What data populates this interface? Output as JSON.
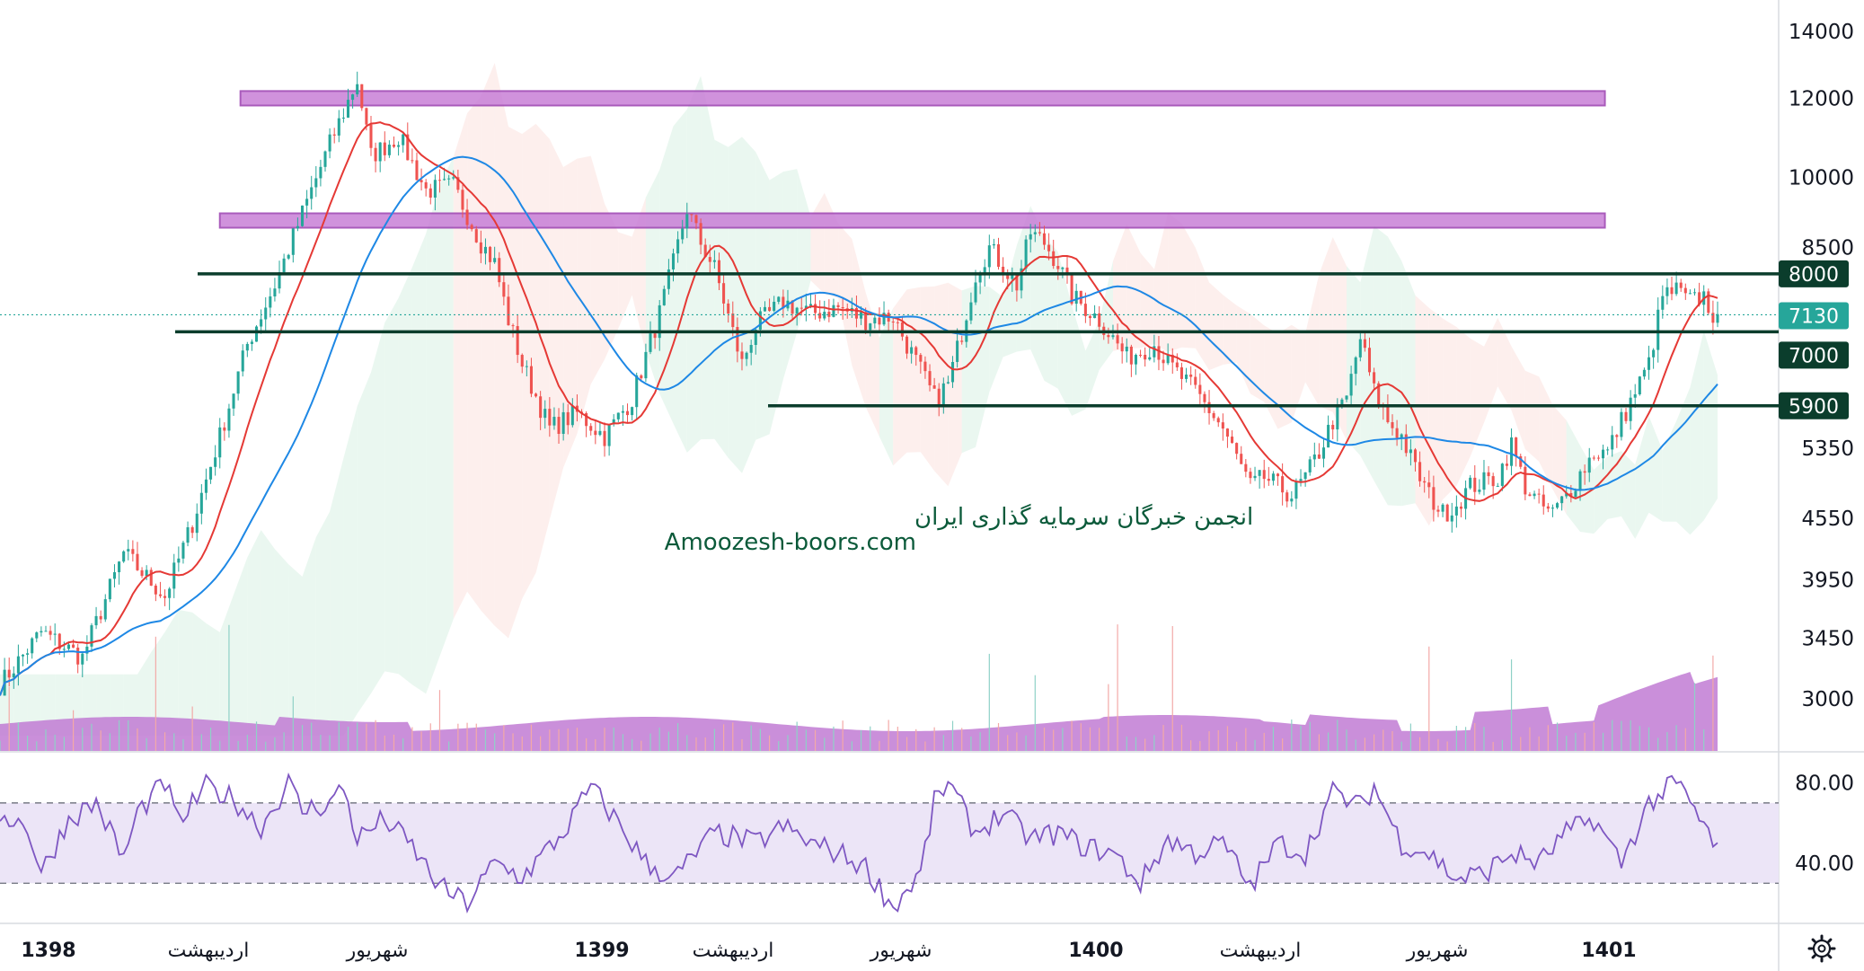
{
  "chart_data": [
    {
      "type": "candlestick",
      "x_tick_labels": [
        "1398",
        "اردیبهشت",
        "شهریور",
        "1399",
        "اردیبهشت",
        "شهریور",
        "1400",
        "اردیبهشت",
        "شهریور",
        "1401"
      ],
      "bold_ticks": [
        "1398",
        "1399",
        "1400",
        "1401"
      ],
      "y_scale": "log",
      "y_tick_labels": [
        "14000",
        "12000",
        "10000",
        "8500",
        "5350",
        "4550",
        "3950",
        "3450",
        "3000"
      ],
      "ylim": [
        2600,
        15500
      ],
      "close_points": [
        [
          0,
          3100
        ],
        [
          3,
          3500
        ],
        [
          6,
          3300
        ],
        [
          9,
          4200
        ],
        [
          12,
          3800
        ],
        [
          14,
          4500
        ],
        [
          16,
          5500
        ],
        [
          18,
          6800
        ],
        [
          20,
          7800
        ],
        [
          22,
          9200
        ],
        [
          24,
          10800
        ],
        [
          26,
          12500
        ],
        [
          27,
          10500
        ],
        [
          29,
          11000
        ],
        [
          31,
          9700
        ],
        [
          33,
          9800
        ],
        [
          35,
          8600
        ],
        [
          36,
          8200
        ],
        [
          37,
          7200
        ],
        [
          38,
          6500
        ],
        [
          40,
          5600
        ],
        [
          42,
          5800
        ],
        [
          44,
          5500
        ],
        [
          46,
          6000
        ],
        [
          48,
          7300
        ],
        [
          49,
          8200
        ],
        [
          50,
          9300
        ],
        [
          51,
          8600
        ],
        [
          52,
          8100
        ],
        [
          54,
          6500
        ],
        [
          55,
          7100
        ],
        [
          57,
          7500
        ],
        [
          59,
          7300
        ],
        [
          61,
          7400
        ],
        [
          63,
          7200
        ],
        [
          65,
          7250
        ],
        [
          66,
          6800
        ],
        [
          67,
          6400
        ],
        [
          68,
          6000
        ],
        [
          69,
          6200
        ],
        [
          70,
          7000
        ],
        [
          71,
          8000
        ],
        [
          72,
          8500
        ],
        [
          74,
          7800
        ],
        [
          75,
          8800
        ],
        [
          76,
          8600
        ],
        [
          77,
          8200
        ],
        [
          78,
          7600
        ],
        [
          80,
          7200
        ],
        [
          82,
          6600
        ],
        [
          84,
          6800
        ],
        [
          85,
          6500
        ],
        [
          87,
          6100
        ],
        [
          89,
          5600
        ],
        [
          91,
          4900
        ],
        [
          92,
          5000
        ],
        [
          94,
          4800
        ],
        [
          95,
          5000
        ],
        [
          96,
          5300
        ],
        [
          97,
          5700
        ],
        [
          98,
          6000
        ],
        [
          99,
          6900
        ],
        [
          100,
          6100
        ],
        [
          101,
          5700
        ],
        [
          102,
          5500
        ],
        [
          103,
          5100
        ],
        [
          104,
          4800
        ],
        [
          105,
          4600
        ],
        [
          106,
          4700
        ],
        [
          107,
          4900
        ],
        [
          109,
          5000
        ],
        [
          110,
          5400
        ],
        [
          111,
          4900
        ],
        [
          112,
          4700
        ],
        [
          113,
          4600
        ],
        [
          114,
          4800
        ],
        [
          116,
          5300
        ],
        [
          117,
          5300
        ],
        [
          118,
          5700
        ],
        [
          120,
          6500
        ],
        [
          121,
          7600
        ],
        [
          122,
          7700
        ],
        [
          123,
          7500
        ],
        [
          124,
          7600
        ],
        [
          125,
          7130
        ]
      ],
      "series": [
        {
          "name": "",
          "color": "#e53935"
        },
        {
          "name": "",
          "color": "#1e88e5"
        }
      ],
      "levels": [
        {
          "label": "8000",
          "value": 8000
        },
        {
          "label": "7000",
          "value": 7000
        },
        {
          "label": "5900",
          "value": 5900
        }
      ],
      "zones": [
        {
          "from": 11800,
          "to": 12200
        },
        {
          "from": 8900,
          "to": 9200
        }
      ],
      "last_price_label": "7130",
      "level_color": "#0b3d2c",
      "zone_color": "#c87fd7",
      "volume_color": "#c17bd3",
      "colors": {
        "up": "#26a69a",
        "down": "#ef5350"
      }
    },
    {
      "type": "line",
      "y_tick_labels": [
        "80.00",
        "40.00"
      ],
      "band": [
        30,
        70
      ],
      "ylim": [
        10,
        95
      ],
      "line_color": "#7e57c2",
      "band_fill": "#ece5f7",
      "points": [
        [
          0,
          65
        ],
        [
          2,
          58
        ],
        [
          3,
          35
        ],
        [
          5,
          62
        ],
        [
          7,
          70
        ],
        [
          9,
          42
        ],
        [
          10,
          65
        ],
        [
          12,
          80
        ],
        [
          13,
          60
        ],
        [
          15,
          78
        ],
        [
          17,
          72
        ],
        [
          19,
          58
        ],
        [
          21,
          80
        ],
        [
          22,
          66
        ],
        [
          24,
          70
        ],
        [
          25,
          78
        ],
        [
          26,
          52
        ],
        [
          28,
          62
        ],
        [
          30,
          48
        ],
        [
          32,
          28
        ],
        [
          34,
          20
        ],
        [
          36,
          40
        ],
        [
          38,
          33
        ],
        [
          41,
          55
        ],
        [
          43,
          78
        ],
        [
          45,
          60
        ],
        [
          47,
          40
        ],
        [
          49,
          32
        ],
        [
          52,
          55
        ],
        [
          55,
          50
        ],
        [
          57,
          58
        ],
        [
          59,
          50
        ],
        [
          61,
          45
        ],
        [
          63,
          38
        ],
        [
          65,
          18
        ],
        [
          67,
          35
        ],
        [
          68,
          70
        ],
        [
          69,
          80
        ],
        [
          71,
          55
        ],
        [
          73,
          65
        ],
        [
          75,
          52
        ],
        [
          77,
          55
        ],
        [
          79,
          48
        ],
        [
          81,
          45
        ],
        [
          83,
          30
        ],
        [
          85,
          52
        ],
        [
          87,
          45
        ],
        [
          89,
          50
        ],
        [
          91,
          28
        ],
        [
          93,
          50
        ],
        [
          95,
          45
        ],
        [
          97,
          75
        ],
        [
          99,
          68
        ],
        [
          100,
          78
        ],
        [
          102,
          50
        ],
        [
          104,
          45
        ],
        [
          106,
          32
        ],
        [
          108,
          35
        ],
        [
          110,
          45
        ],
        [
          112,
          40
        ],
        [
          114,
          55
        ],
        [
          116,
          62
        ],
        [
          118,
          40
        ],
        [
          120,
          70
        ],
        [
          122,
          80
        ],
        [
          123,
          70
        ],
        [
          124,
          58
        ],
        [
          125,
          47
        ]
      ]
    }
  ],
  "watermark": {
    "line1": "انجمن خبرگان سرمایه گذاری ایران",
    "line2": "Amoozesh-boors.com"
  },
  "settings_icon": "gear-icon"
}
